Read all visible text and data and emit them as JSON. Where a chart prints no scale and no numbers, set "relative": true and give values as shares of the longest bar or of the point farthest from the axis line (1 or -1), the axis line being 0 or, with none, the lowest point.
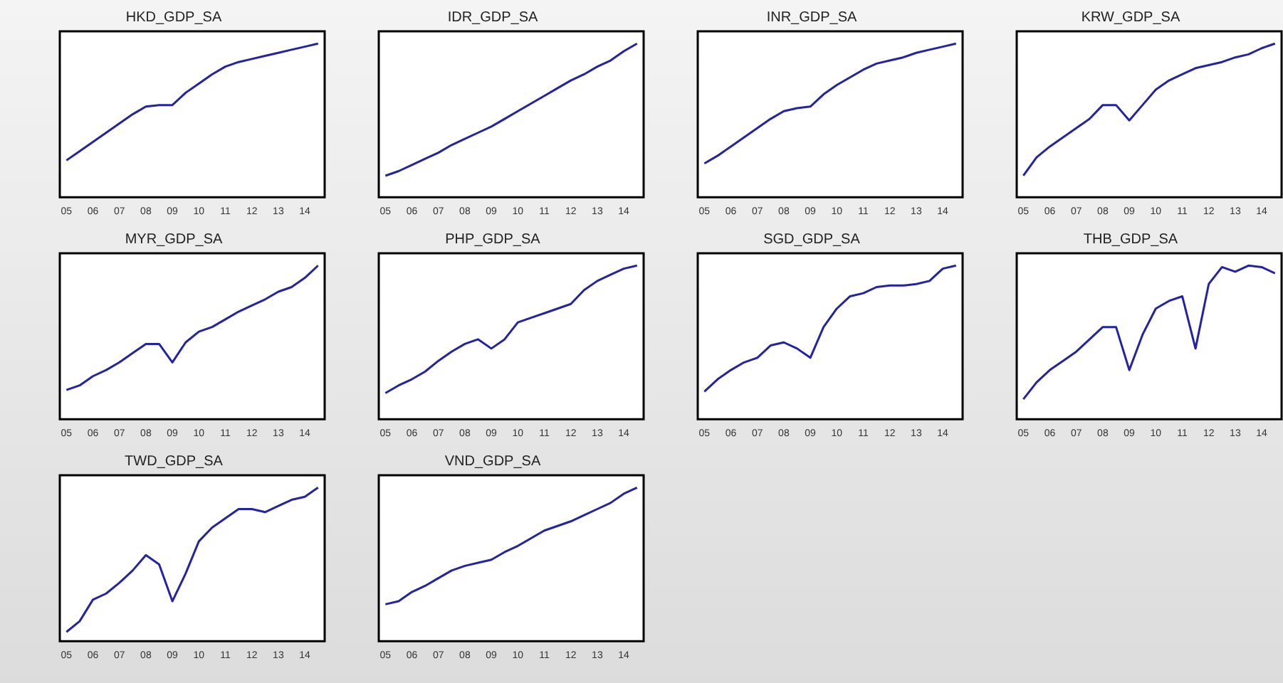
{
  "chart_data": [
    {
      "type": "line",
      "title": "HKD_GDP_SA",
      "relative": true,
      "grid": false,
      "legend": false,
      "marker": "none",
      "categories": [
        "05",
        null,
        "06",
        null,
        "07",
        null,
        "08",
        null,
        "09",
        null,
        "10",
        null,
        "11",
        null,
        "12",
        null,
        "13",
        null,
        "14",
        null
      ],
      "series": [
        {
          "color": "#2323a8",
          "values": [
            0.24,
            0.3,
            0.36,
            0.42,
            0.48,
            0.54,
            0.59,
            0.6,
            0.6,
            0.68,
            0.74,
            0.8,
            0.85,
            0.88,
            0.9,
            0.92,
            0.94,
            0.96,
            0.98,
            1
          ]
        }
      ]
    },
    {
      "type": "line",
      "title": "IDR_GDP_SA",
      "relative": true,
      "grid": false,
      "legend": false,
      "marker": "none",
      "categories": [
        "05",
        null,
        "06",
        null,
        "07",
        null,
        "08",
        null,
        "09",
        null,
        "10",
        null,
        "11",
        null,
        "12",
        null,
        "13",
        null,
        "14",
        null
      ],
      "series": [
        {
          "color": "#2323a8",
          "values": [
            0.14,
            0.17,
            0.21,
            0.25,
            0.29,
            0.34,
            0.38,
            0.42,
            0.46,
            0.51,
            0.56,
            0.61,
            0.66,
            0.71,
            0.76,
            0.8,
            0.85,
            0.89,
            0.95,
            1
          ]
        }
      ]
    },
    {
      "type": "line",
      "title": "INR_GDP_SA",
      "relative": true,
      "grid": false,
      "legend": false,
      "marker": "none",
      "categories": [
        "05",
        null,
        "06",
        null,
        "07",
        null,
        "08",
        null,
        "09",
        null,
        "10",
        null,
        "11",
        null,
        "12",
        null,
        "13",
        null,
        "14",
        null
      ],
      "series": [
        {
          "color": "#2323a8",
          "values": [
            0.22,
            0.27,
            0.33,
            0.39,
            0.45,
            0.51,
            0.56,
            0.58,
            0.59,
            0.67,
            0.73,
            0.78,
            0.83,
            0.87,
            0.89,
            0.91,
            0.94,
            0.96,
            0.98,
            1
          ]
        }
      ]
    },
    {
      "type": "line",
      "title": "KRW_GDP_SA",
      "relative": true,
      "grid": false,
      "legend": false,
      "marker": "none",
      "categories": [
        "05",
        null,
        "06",
        null,
        "07",
        null,
        "08",
        null,
        "09",
        null,
        "10",
        null,
        "11",
        null,
        "12",
        null,
        "13",
        null,
        "14",
        null
      ],
      "series": [
        {
          "color": "#2323a8",
          "values": [
            0.14,
            0.26,
            0.33,
            0.39,
            0.45,
            0.51,
            0.6,
            0.6,
            0.5,
            0.6,
            0.7,
            0.76,
            0.8,
            0.84,
            0.86,
            0.88,
            0.91,
            0.93,
            0.97,
            1
          ]
        }
      ]
    },
    {
      "type": "line",
      "title": "MYR_GDP_SA",
      "relative": true,
      "grid": false,
      "legend": false,
      "marker": "none",
      "categories": [
        "05",
        null,
        "06",
        null,
        "07",
        null,
        "08",
        null,
        "09",
        null,
        "10",
        null,
        "11",
        null,
        "12",
        null,
        "13",
        null,
        "14",
        null
      ],
      "series": [
        {
          "color": "#2323a8",
          "values": [
            0.19,
            0.22,
            0.28,
            0.32,
            0.37,
            0.43,
            0.49,
            0.49,
            0.37,
            0.5,
            0.57,
            0.6,
            0.65,
            0.7,
            0.74,
            0.78,
            0.83,
            0.86,
            0.92,
            1
          ]
        }
      ]
    },
    {
      "type": "line",
      "title": "PHP_GDP_SA",
      "relative": true,
      "grid": false,
      "legend": false,
      "marker": "none",
      "categories": [
        "05",
        null,
        "06",
        null,
        "07",
        null,
        "08",
        null,
        "09",
        null,
        "10",
        null,
        "11",
        null,
        "12",
        null,
        "13",
        null,
        "14",
        null
      ],
      "series": [
        {
          "color": "#2323a8",
          "values": [
            0.17,
            0.22,
            0.26,
            0.31,
            0.38,
            0.44,
            0.49,
            0.52,
            0.46,
            0.52,
            0.63,
            0.66,
            0.69,
            0.72,
            0.75,
            0.84,
            0.9,
            0.94,
            0.98,
            1
          ]
        }
      ]
    },
    {
      "type": "line",
      "title": "SGD_GDP_SA",
      "relative": true,
      "grid": false,
      "legend": false,
      "marker": "none",
      "categories": [
        "05",
        null,
        "06",
        null,
        "07",
        null,
        "08",
        null,
        "09",
        null,
        "10",
        null,
        "11",
        null,
        "12",
        null,
        "13",
        null,
        "14",
        null
      ],
      "series": [
        {
          "color": "#2323a8",
          "values": [
            0.18,
            0.26,
            0.32,
            0.37,
            0.4,
            0.48,
            0.5,
            0.46,
            0.4,
            0.6,
            0.72,
            0.8,
            0.82,
            0.86,
            0.87,
            0.87,
            0.88,
            0.9,
            0.98,
            1
          ]
        }
      ]
    },
    {
      "type": "line",
      "title": "THB_GDP_SA",
      "relative": true,
      "grid": false,
      "legend": false,
      "marker": "none",
      "categories": [
        "05",
        null,
        "06",
        null,
        "07",
        null,
        "08",
        null,
        "09",
        null,
        "10",
        null,
        "11",
        null,
        "12",
        null,
        "13",
        null,
        "14",
        null
      ],
      "series": [
        {
          "color": "#2323a8",
          "values": [
            0.13,
            0.24,
            0.32,
            0.38,
            0.44,
            0.52,
            0.6,
            0.6,
            0.32,
            0.55,
            0.72,
            0.77,
            0.8,
            0.46,
            0.88,
            0.99,
            0.96,
            1,
            0.99,
            0.95
          ]
        }
      ]
    },
    {
      "type": "line",
      "title": "TWD_GDP_SA",
      "relative": true,
      "grid": false,
      "legend": false,
      "marker": "none",
      "categories": [
        "05",
        null,
        "06",
        null,
        "07",
        null,
        "08",
        null,
        "09",
        null,
        "10",
        null,
        "11",
        null,
        "12",
        null,
        "13",
        null,
        "14",
        null
      ],
      "series": [
        {
          "color": "#2323a8",
          "values": [
            0.06,
            0.13,
            0.27,
            0.31,
            0.38,
            0.46,
            0.56,
            0.5,
            0.26,
            0.44,
            0.65,
            0.74,
            0.8,
            0.86,
            0.86,
            0.84,
            0.88,
            0.92,
            0.94,
            1
          ]
        }
      ]
    },
    {
      "type": "line",
      "title": "VND_GDP_SA",
      "relative": true,
      "grid": false,
      "legend": false,
      "marker": "none",
      "categories": [
        "05",
        null,
        "06",
        null,
        "07",
        null,
        "08",
        null,
        "09",
        null,
        "10",
        null,
        "11",
        null,
        "12",
        null,
        "13",
        null,
        "14",
        null
      ],
      "series": [
        {
          "color": "#2323a8",
          "values": [
            0.24,
            0.26,
            0.32,
            0.36,
            0.41,
            0.46,
            0.49,
            0.51,
            0.53,
            0.58,
            0.62,
            0.67,
            0.72,
            0.75,
            0.78,
            0.82,
            0.86,
            0.9,
            0.96,
            1
          ]
        }
      ]
    }
  ]
}
